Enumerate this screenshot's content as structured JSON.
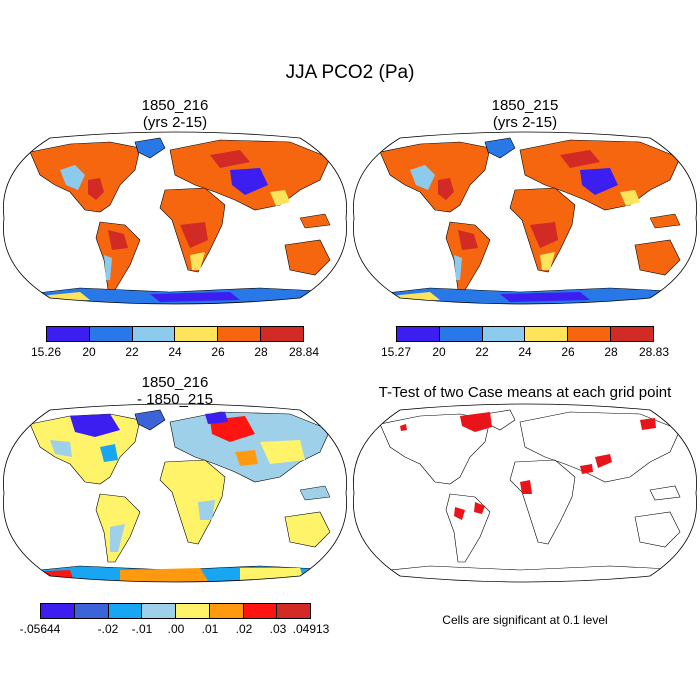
{
  "main_title": "JJA PCO2 (Pa)",
  "panels": [
    {
      "title1": "1850_216",
      "title2": "(yrs 2-15)"
    },
    {
      "title1": "1850_215",
      "title2": "(yrs 2-15)"
    },
    {
      "title1": "1850_216",
      "title2": "- 1850_215"
    },
    {
      "title1": "T-Test of two Case means at each grid point",
      "title2": ""
    }
  ],
  "colorbars": [
    {
      "colors": [
        "#3c1ef0",
        "#2878e8",
        "#8ccaee",
        "#fee45a",
        "#f5660e",
        "#d22a24"
      ],
      "ticks": [
        "15.26",
        "20",
        "22",
        "24",
        "26",
        "28",
        "28.84"
      ]
    },
    {
      "colors": [
        "#3c1ef0",
        "#2878e8",
        "#8ccaee",
        "#fee45a",
        "#f5660e",
        "#d22a24"
      ],
      "ticks": [
        "15.27",
        "20",
        "22",
        "24",
        "26",
        "28",
        "28.83"
      ]
    },
    {
      "colors": [
        "#3c1ef0",
        "#3c64d8",
        "#18a6f2",
        "#9ed0ea",
        "#fff36a",
        "#ff9a10",
        "#fe1410",
        "#d22a24"
      ],
      "ticks": [
        "-.05644",
        "-.02",
        "-.01",
        ".00",
        ".01",
        ".02",
        ".03",
        ".04913"
      ]
    }
  ],
  "note": "Cells are significant at 0.1 level"
}
